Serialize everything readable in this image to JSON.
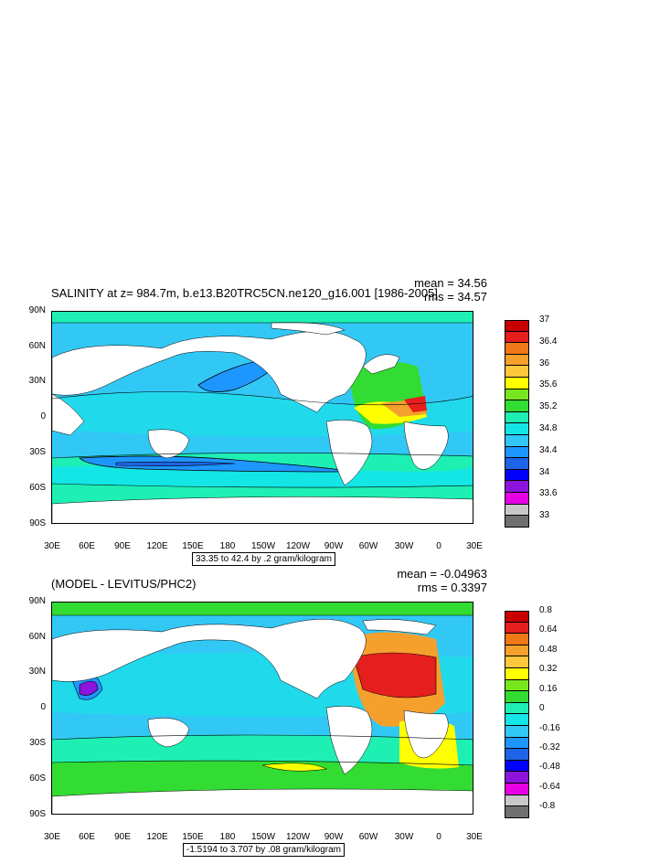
{
  "panels": [
    {
      "id": "top",
      "title": "SALINITY at z= 984.7m, b.e13.B20TRC5CN.ne120_g16.001 [1986-2005]",
      "mean_text": "mean = 34.56",
      "rms_text": "rms = 34.57",
      "range_text": "33.35 to 42.4 by .2 gram/kilogram",
      "colorbar_labels": [
        "37",
        "36.4",
        "36",
        "35.6",
        "35.2",
        "34.8",
        "34.4",
        "34",
        "33.6",
        "33"
      ],
      "colorbar_colors": [
        "#c80000",
        "#e61e1e",
        "#f07818",
        "#f5a02d",
        "#ffc83c",
        "#ffff00",
        "#78e61e",
        "#32dc32",
        "#1ef0b4",
        "#14e6e6",
        "#32c8f5",
        "#1e96ff",
        "#1e64e6",
        "#0000ff",
        "#8c14dc",
        "#e600e6",
        "#c8c8c8",
        "#707070"
      ]
    },
    {
      "id": "bottom",
      "title": "(MODEL - LEVITUS/PHC2)",
      "mean_text": "mean = -0.04963",
      "rms_text": "rms = 0.3397",
      "range_text": "-1.5194 to 3.707 by .08 gram/kilogram",
      "colorbar_labels": [
        "0.8",
        "0.64",
        "0.48",
        "0.32",
        "0.16",
        "0",
        "-0.16",
        "-0.32",
        "-0.48",
        "-0.64",
        "-0.8"
      ],
      "colorbar_colors": [
        "#c80000",
        "#e61e1e",
        "#f07818",
        "#f5a02d",
        "#ffc83c",
        "#ffff00",
        "#78e61e",
        "#32dc32",
        "#1ef0b4",
        "#14e6e6",
        "#32c8f5",
        "#1e96ff",
        "#1e64e6",
        "#0000ff",
        "#8c14dc",
        "#e600e6",
        "#c8c8c8",
        "#707070"
      ]
    }
  ],
  "axes": {
    "lat_labels": [
      "90N",
      "60N",
      "30N",
      "0",
      "30S",
      "60S",
      "90S"
    ],
    "lon_labels": [
      "30E",
      "60E",
      "90E",
      "120E",
      "150E",
      "180",
      "150W",
      "120W",
      "90W",
      "60W",
      "30W",
      "0",
      "30E"
    ]
  },
  "chart_data": [
    {
      "type": "heatmap",
      "title": "SALINITY at z= 984.7m, b.e13.B20TRC5CN.ne120_g16.001 [1986-2005]",
      "xlabel": "",
      "ylabel": "",
      "xlim": [
        30,
        390
      ],
      "ylim": [
        -90,
        90
      ],
      "mean": 34.56,
      "rms": 34.57,
      "data_min": 33.35,
      "data_max": 42.4,
      "contour_interval": 0.2,
      "units": "gram/kilogram",
      "colorbar_ticks": [
        37,
        36.4,
        36,
        35.6,
        35.2,
        34.8,
        34.4,
        34,
        33.6,
        33
      ]
    },
    {
      "type": "heatmap",
      "title": "(MODEL - LEVITUS/PHC2)",
      "xlabel": "",
      "ylabel": "",
      "xlim": [
        30,
        390
      ],
      "ylim": [
        -90,
        90
      ],
      "mean": -0.04963,
      "rms": 0.3397,
      "data_min": -1.5194,
      "data_max": 3.707,
      "contour_interval": 0.08,
      "units": "gram/kilogram",
      "colorbar_ticks": [
        0.8,
        0.64,
        0.48,
        0.32,
        0.16,
        0,
        -0.16,
        -0.32,
        -0.48,
        -0.64,
        -0.8
      ]
    }
  ]
}
